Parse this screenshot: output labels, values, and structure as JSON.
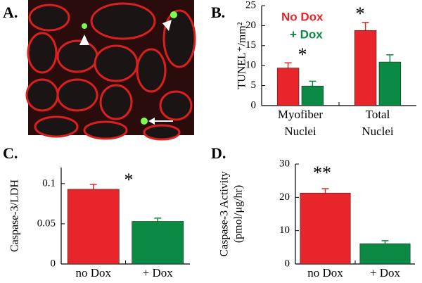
{
  "image_panel": {
    "panel": "A."
  },
  "chart_data": [
    {
      "type": "bar",
      "panel": "B.",
      "ylabel": [
        "TUNEL⁺/mm²"
      ],
      "categories": [
        [
          "Myofiber",
          "Nuclei"
        ],
        [
          "Total",
          "Nuclei"
        ]
      ],
      "series": [
        {
          "name": "No Dox",
          "color": "#e8252b",
          "values": [
            9.4,
            18.8
          ],
          "errors": [
            1.3,
            2.0
          ]
        },
        {
          "name": "+ Dox",
          "color": "#0b8a43",
          "values": [
            4.9,
            10.9
          ],
          "errors": [
            1.2,
            1.8
          ]
        }
      ],
      "annotations": [
        "*",
        "*"
      ],
      "ylim": [
        0,
        25
      ],
      "yticks": [
        0,
        5,
        10,
        15,
        20,
        25
      ]
    },
    {
      "type": "bar",
      "panel": "C.",
      "ylabel": [
        "Caspase-3/LDH"
      ],
      "categories": [
        [
          "no Dox"
        ],
        [
          "+ Dox"
        ]
      ],
      "series": [
        {
          "colors": [
            "#e8252b",
            "#0b8a43"
          ],
          "values": [
            0.093,
            0.053
          ],
          "errors": [
            0.006,
            0.004
          ]
        }
      ],
      "annotations": [
        "*"
      ],
      "ylim": [
        0,
        0.12
      ],
      "yticks": [
        0,
        0.05,
        0.1
      ]
    },
    {
      "type": "bar",
      "panel": "D.",
      "ylabel": [
        "Caspase-3 Activity",
        "(pmol/μg/hr)"
      ],
      "categories": [
        [
          "no Dox"
        ],
        [
          "+ Dox"
        ]
      ],
      "series": [
        {
          "colors": [
            "#e8252b",
            "#0b8a43"
          ],
          "values": [
            21.3,
            6.1
          ],
          "errors": [
            1.3,
            0.9
          ]
        }
      ],
      "annotations": [
        "**"
      ],
      "ylim": [
        0,
        30
      ],
      "yticks": [
        0,
        10,
        20,
        30
      ]
    }
  ]
}
